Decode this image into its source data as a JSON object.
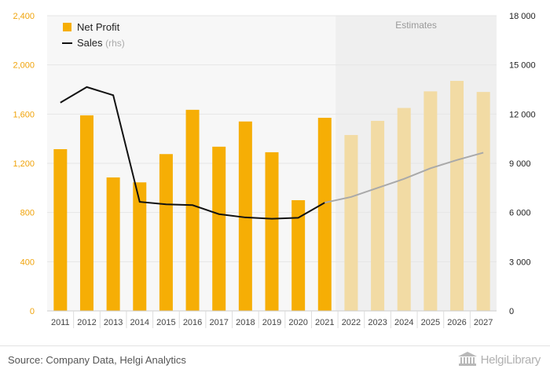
{
  "chart_data": {
    "type": "bar",
    "categories": [
      "2011",
      "2012",
      "2013",
      "2014",
      "2015",
      "2016",
      "2017",
      "2018",
      "2019",
      "2020",
      "2021",
      "2022",
      "2023",
      "2024",
      "2025",
      "2026",
      "2027"
    ],
    "estimate_start": "2022",
    "estimate_label": "Estimates",
    "series": [
      {
        "name": "Net Profit",
        "type": "bar",
        "axis": "left",
        "color": "#f6ae05",
        "estimate_color": "#f2dba4",
        "values": [
          1315,
          1590,
          1085,
          1045,
          1275,
          1635,
          1335,
          1540,
          1290,
          900,
          1570,
          1430,
          1545,
          1650,
          1785,
          1870,
          1780
        ]
      },
      {
        "name": "Sales",
        "name_suffix": "(rhs)",
        "type": "line",
        "axis": "right",
        "color": "#111111",
        "estimate_color": "#a9a9a9",
        "values": [
          12700,
          13650,
          13150,
          6650,
          6500,
          6450,
          5900,
          5700,
          5620,
          5680,
          6600,
          6950,
          7500,
          8050,
          8700,
          9200,
          9650
        ]
      }
    ],
    "y_left": {
      "min": 0,
      "max": 2400,
      "ticks": [
        "0",
        "400",
        "800",
        "1,200",
        "1,600",
        "2,000",
        "2,400"
      ]
    },
    "y_right": {
      "min": 0,
      "max": 18000,
      "ticks": [
        "0",
        "3 000",
        "6 000",
        "9 000",
        "12 000",
        "15 000",
        "18 000"
      ]
    },
    "grid": true,
    "legend_position": "top-left"
  },
  "footer": {
    "source": "Source: Company Data, Helgi Analytics",
    "brand": "HelgiLibrary"
  },
  "colors": {
    "estimate_band": "#efefef",
    "plot_background": "#f7f7f7",
    "grid": "#e6e6e6"
  }
}
